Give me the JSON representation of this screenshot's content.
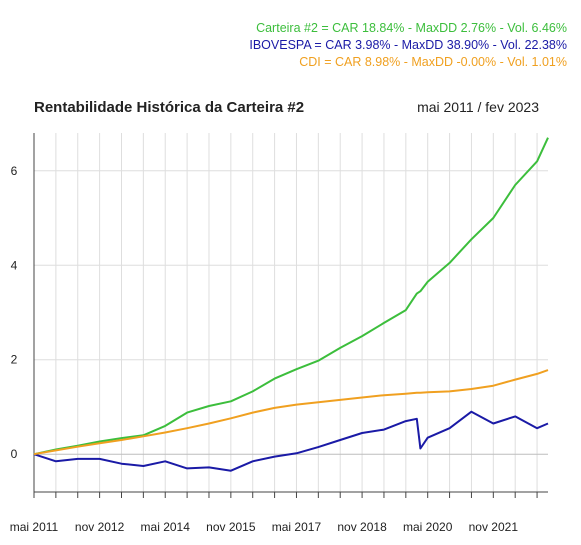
{
  "legend": [
    {
      "text": "Carteira #2 = CAR 18.84% - MaxDD 2.76% - Vol. 6.46%",
      "color": "#3cbe3c"
    },
    {
      "text": "IBOVESPA = CAR 3.98% - MaxDD 38.90% - Vol. 22.38%",
      "color": "#1a1aa6"
    },
    {
      "text": "CDI = CAR 8.98% - MaxDD -0.00% - Vol. 1.01%",
      "color": "#f0a020"
    }
  ],
  "chart_data": {
    "type": "line",
    "title": "Rentabilidade Histórica da Carteira #2",
    "period_label": "mai 2011 / fev 2023",
    "x_tick_labels": [
      "mai 2011",
      "nov 2012",
      "mai 2014",
      "nov 2015",
      "mai 2017",
      "nov 2018",
      "mai 2020",
      "nov 2021"
    ],
    "x_tick_dates": [
      "2011-05",
      "2012-11",
      "2014-05",
      "2015-11",
      "2017-05",
      "2018-11",
      "2020-05",
      "2021-11"
    ],
    "xlim": [
      "2011-05",
      "2023-02"
    ],
    "y_ticks": [
      0,
      2,
      4,
      6
    ],
    "ylim": [
      -0.8,
      6.8
    ],
    "grid": true,
    "x": [
      "2011-05",
      "2011-11",
      "2012-05",
      "2012-11",
      "2013-05",
      "2013-11",
      "2014-05",
      "2014-11",
      "2015-05",
      "2015-11",
      "2016-05",
      "2016-11",
      "2017-05",
      "2017-11",
      "2018-05",
      "2018-11",
      "2019-05",
      "2019-11",
      "2020-02",
      "2020-03",
      "2020-05",
      "2020-11",
      "2021-05",
      "2021-11",
      "2022-05",
      "2022-11",
      "2023-02"
    ],
    "series": [
      {
        "name": "Carteira #2",
        "color": "#3cbe3c",
        "values": [
          0,
          0.1,
          0.18,
          0.27,
          0.34,
          0.4,
          0.6,
          0.88,
          1.02,
          1.12,
          1.33,
          1.6,
          1.8,
          1.98,
          2.25,
          2.5,
          2.78,
          3.05,
          3.4,
          3.45,
          3.65,
          4.05,
          4.55,
          5.0,
          5.7,
          6.2,
          6.7
        ]
      },
      {
        "name": "IBOVESPA",
        "color": "#1a1aa6",
        "values": [
          0,
          -0.15,
          -0.1,
          -0.1,
          -0.2,
          -0.25,
          -0.15,
          -0.3,
          -0.28,
          -0.35,
          -0.15,
          -0.05,
          0.02,
          0.15,
          0.3,
          0.45,
          0.52,
          0.7,
          0.75,
          0.12,
          0.35,
          0.55,
          0.9,
          0.65,
          0.8,
          0.55,
          0.65
        ]
      },
      {
        "name": "CDI",
        "color": "#f0a020",
        "values": [
          0,
          0.08,
          0.16,
          0.23,
          0.3,
          0.38,
          0.46,
          0.55,
          0.65,
          0.76,
          0.88,
          0.98,
          1.05,
          1.1,
          1.15,
          1.2,
          1.25,
          1.28,
          1.3,
          1.3,
          1.31,
          1.33,
          1.38,
          1.45,
          1.58,
          1.7,
          1.78
        ]
      }
    ]
  }
}
